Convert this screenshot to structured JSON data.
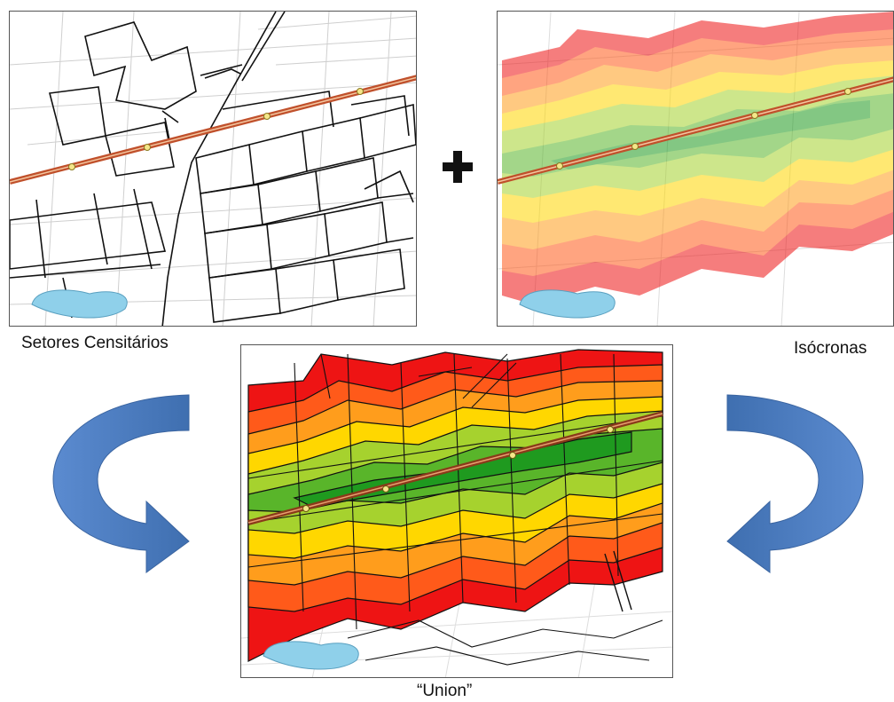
{
  "panels": {
    "census_tracts": {
      "caption": "Setores Censitários"
    },
    "isochrones": {
      "caption": "Isócronas"
    },
    "union": {
      "caption": "“Union”"
    }
  },
  "operator": {
    "icon": "plus-icon"
  },
  "arrows": {
    "left_icon": "curved-arrow-right-icon",
    "right_icon": "curved-arrow-left-icon"
  },
  "colors": {
    "rail_line": "#c0502b",
    "station": "#f5e68a",
    "lake": "#8fd0ea",
    "arrow": "#4e7fbe",
    "isochrone_bands": [
      "#1f9a1f",
      "#59b52a",
      "#a6d22e",
      "#ffd700",
      "#ff9d1c",
      "#ff5a1a",
      "#ee1414"
    ]
  }
}
